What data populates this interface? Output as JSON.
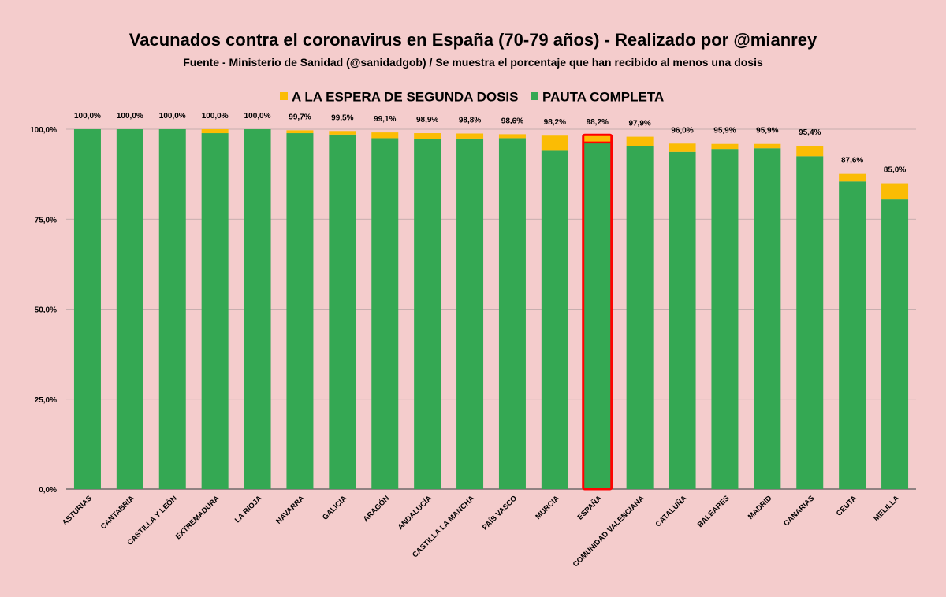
{
  "chart_data": {
    "type": "bar",
    "stacked": true,
    "title": "Vacunados contra el coronavirus en España (70-79 años) - Realizado por @mianrey",
    "subtitle": "Fuente - Ministerio de Sanidad (@sanidadgob) / Se muestra el porcentaje que han recibido al menos una dosis",
    "legend_position": "top",
    "ylim": [
      0,
      100
    ],
    "yticks": [
      "0,0%",
      "25,0%",
      "50,0%",
      "75,0%",
      "100,0%"
    ],
    "yticks_values": [
      0,
      25,
      50,
      75,
      100
    ],
    "grid": true,
    "highlight_category": "ESPAÑA",
    "highlight_color": "#ff0000",
    "categories": [
      "ASTURIAS",
      "CANTABRIA",
      "CASTILLA Y LEÓN",
      "EXTREMADURA",
      "LA RIOJA",
      "NAVARRA",
      "GALICIA",
      "ARAGÓN",
      "ANDALUCÍA",
      "CASTILLA LA MANCHA",
      "PAÍS VASCO",
      "MURCIA",
      "ESPAÑA",
      "COMUNIDAD VALENCIANA",
      "CATALUÑA",
      "BALEARES",
      "MADRID",
      "CANARIAS",
      "CEUTA",
      "MELILLA"
    ],
    "series": [
      {
        "name": "PAUTA COMPLETA",
        "color": "#34a853",
        "values": [
          100,
          100,
          100,
          98.9,
          100,
          98.9,
          98.5,
          97.5,
          97.2,
          97.4,
          97.5,
          94.0,
          96.3,
          95.4,
          93.7,
          94.5,
          94.7,
          92.5,
          85.5,
          80.5
        ]
      },
      {
        "name": "A LA ESPERA DE SEGUNDA DOSIS",
        "color": "#fbbc04",
        "values": [
          0,
          0,
          0,
          1.1,
          0,
          0.8,
          1.0,
          1.6,
          1.7,
          1.4,
          1.1,
          4.2,
          1.9,
          2.5,
          2.3,
          1.4,
          1.2,
          2.9,
          2.1,
          4.5
        ]
      }
    ],
    "totals": [
      "100,0%",
      "100,0%",
      "100,0%",
      "100,0%",
      "100,0%",
      "99,7%",
      "99,5%",
      "99,1%",
      "98,9%",
      "98,8%",
      "98,6%",
      "98,2%",
      "98,2%",
      "97,9%",
      "96,0%",
      "95,9%",
      "95,9%",
      "95,4%",
      "87,6%",
      "85,0%"
    ]
  }
}
